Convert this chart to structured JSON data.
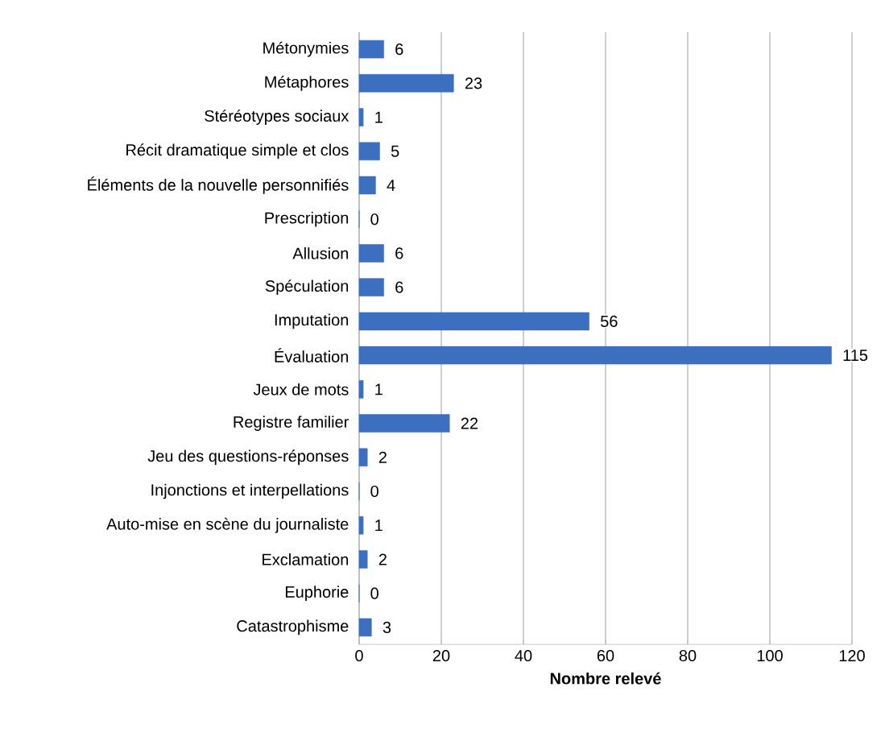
{
  "chart_data": {
    "type": "bar",
    "orientation": "horizontal",
    "xlabel": "Nombre relevé",
    "categories": [
      "Métonymies",
      "Métaphores",
      "Stéréotypes sociaux",
      "Récit dramatique simple et clos",
      "Éléments de la nouvelle personnifiés",
      "Prescription",
      "Allusion",
      "Spéculation",
      "Imputation",
      "Évaluation",
      "Jeux de mots",
      "Registre familier",
      "Jeu des questions-réponses",
      "Injonctions et interpellations",
      "Auto-mise en scène du journaliste",
      "Exclamation",
      "Euphorie",
      "Catastrophisme"
    ],
    "values": [
      6,
      23,
      1,
      5,
      4,
      0,
      6,
      6,
      56,
      115,
      1,
      22,
      2,
      0,
      1,
      2,
      0,
      3
    ],
    "color": "#3c6fbf",
    "data_labels": true,
    "grid": "x",
    "xlim": [
      0,
      120
    ],
    "xticks": [
      0,
      20,
      40,
      60,
      80,
      100,
      120
    ]
  }
}
